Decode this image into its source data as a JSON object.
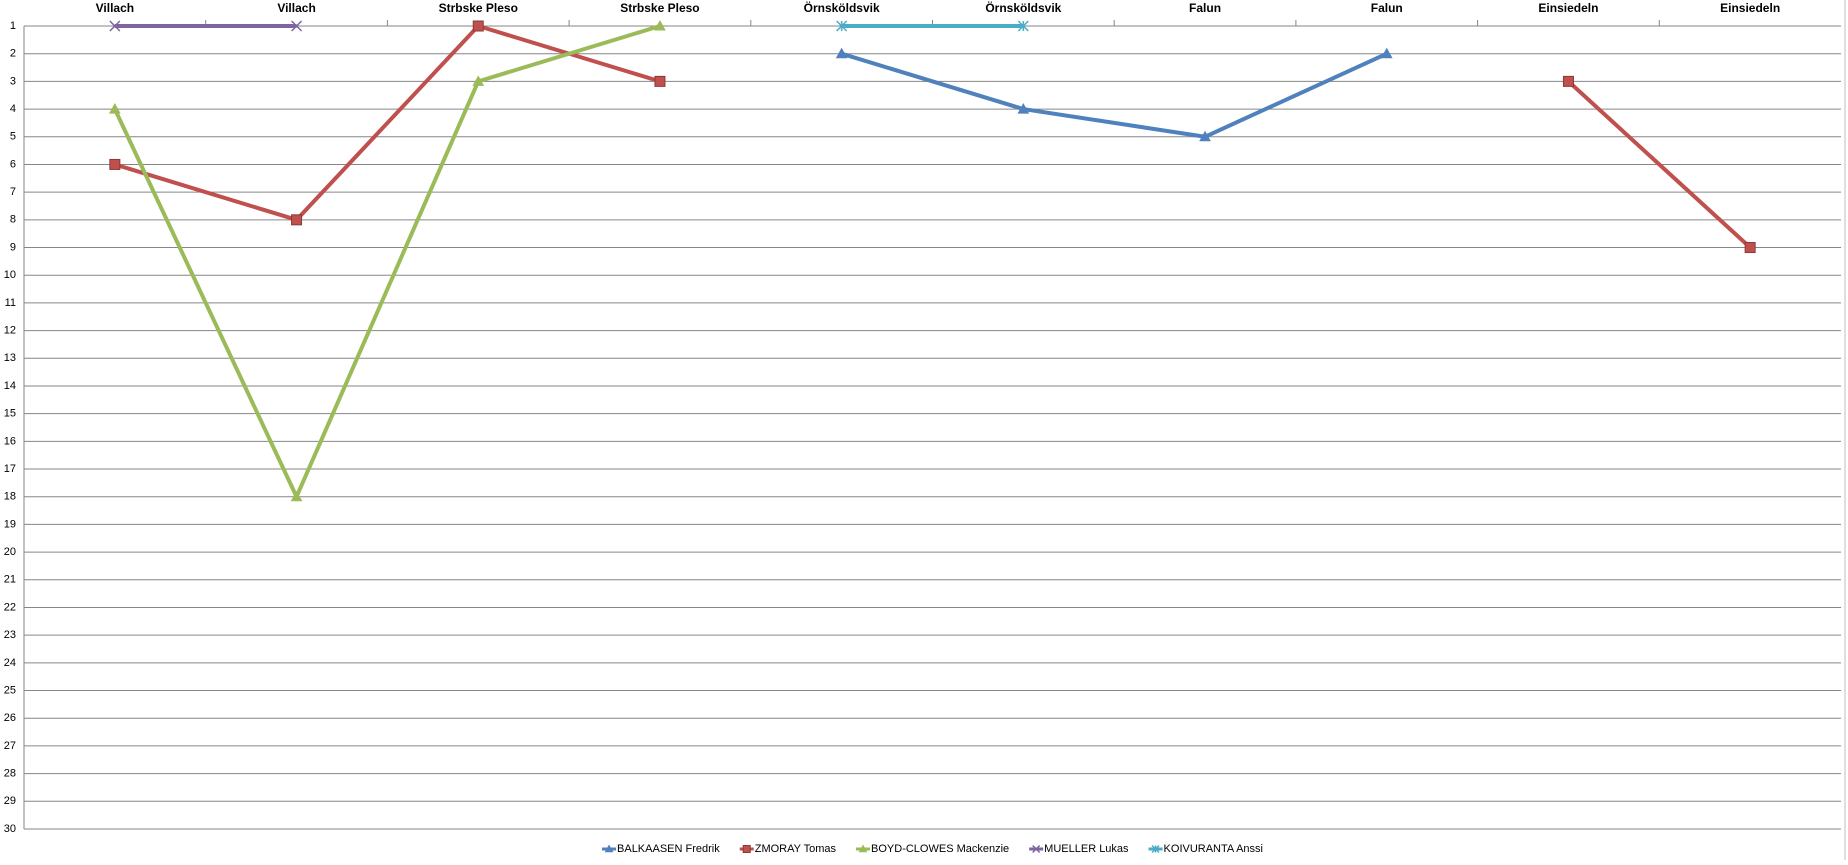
{
  "chart_data": {
    "type": "line",
    "categories": [
      "Villach",
      "Villach",
      "Strbske Pleso",
      "Strbske Pleso",
      "Örnsköldsvik",
      "Örnsköldsvik",
      "Falun",
      "Falun",
      "Einsiedeln",
      "Einsiedeln"
    ],
    "ylim": [
      1,
      30
    ],
    "yticks": [
      1,
      2,
      3,
      4,
      5,
      6,
      7,
      8,
      9,
      10,
      11,
      12,
      13,
      14,
      15,
      16,
      17,
      18,
      19,
      20,
      21,
      22,
      23,
      24,
      25,
      26,
      27,
      28,
      29,
      30
    ],
    "y_reversed": true,
    "grid": true,
    "legend": "bottom",
    "series": [
      {
        "name": "BALKAASEN Fredrik",
        "color": "#4f81bd",
        "marker": "triangle",
        "values": [
          null,
          null,
          null,
          null,
          2,
          4,
          5,
          2,
          null,
          null
        ]
      },
      {
        "name": "ZMORAY Tomas",
        "color": "#c0504d",
        "marker": "square",
        "values": [
          6,
          8,
          1,
          3,
          null,
          null,
          null,
          null,
          3,
          9
        ]
      },
      {
        "name": "BOYD-CLOWES Mackenzie",
        "color": "#9bbb59",
        "marker": "triangle",
        "values": [
          4,
          18,
          3,
          1,
          null,
          null,
          null,
          null,
          null,
          null
        ]
      },
      {
        "name": "MUELLER Lukas",
        "color": "#8064a2",
        "marker": "x",
        "values": [
          1,
          1,
          null,
          null,
          null,
          null,
          null,
          null,
          null,
          null
        ]
      },
      {
        "name": "KOIVURANTA Anssi",
        "color": "#4bacc6",
        "marker": "asterisk",
        "values": [
          null,
          null,
          null,
          null,
          1,
          1,
          null,
          null,
          null,
          null
        ]
      }
    ]
  }
}
